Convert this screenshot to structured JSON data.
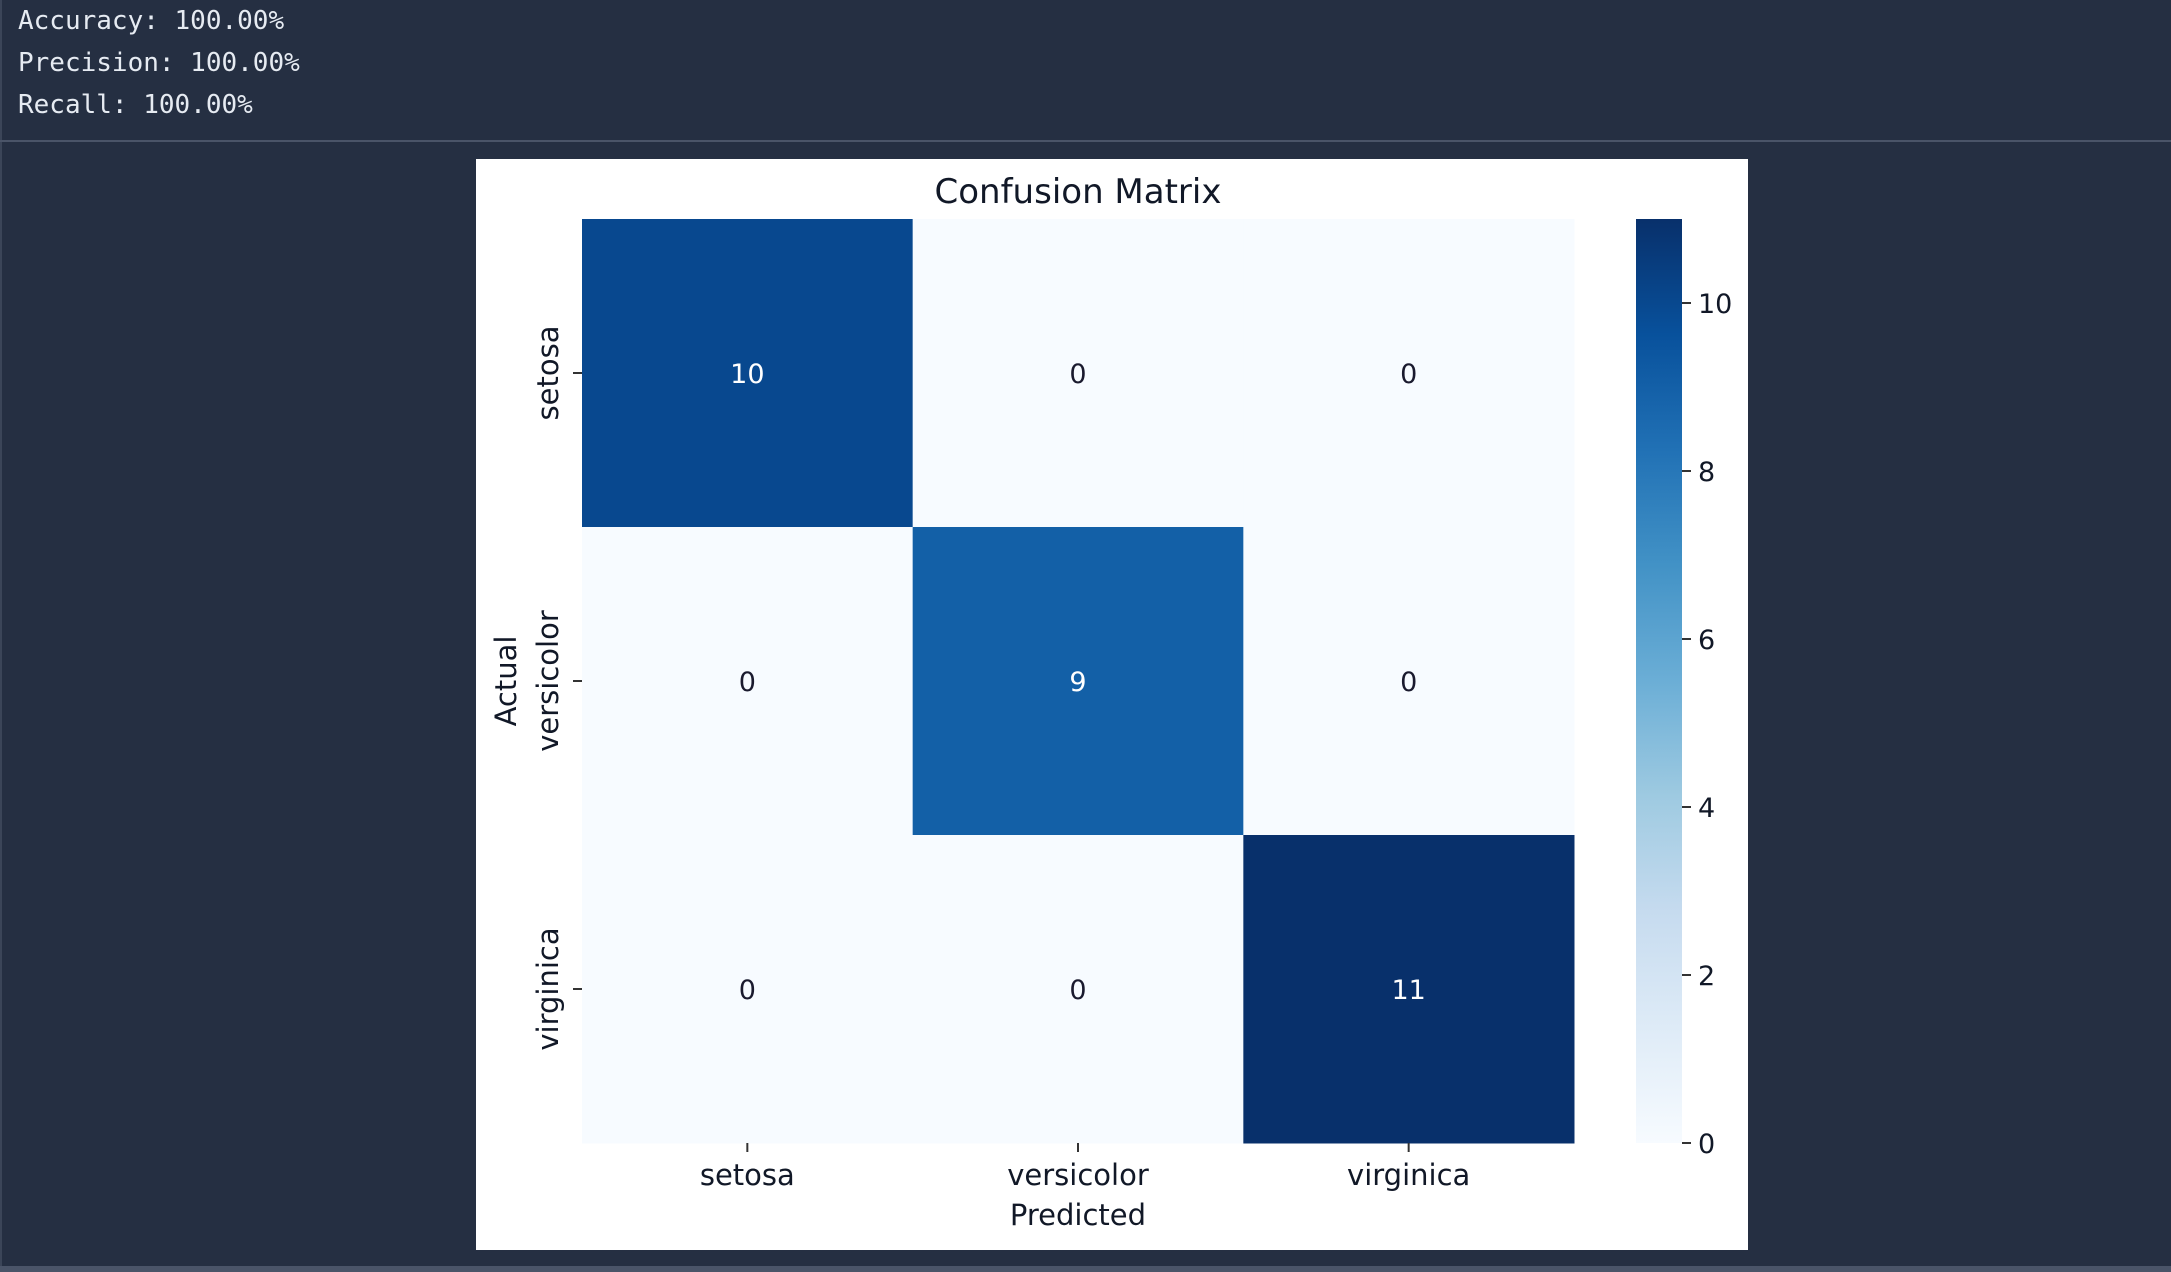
{
  "output": {
    "lines": [
      "Accuracy: 100.00%",
      "Precision: 100.00%",
      "Recall: 100.00%"
    ]
  },
  "chart_data": {
    "type": "heatmap",
    "title": "Confusion Matrix",
    "xlabel": "Predicted",
    "ylabel": "Actual",
    "x_categories": [
      "setosa",
      "versicolor",
      "virginica"
    ],
    "y_categories": [
      "setosa",
      "versicolor",
      "virginica"
    ],
    "values": [
      [
        10,
        0,
        0
      ],
      [
        0,
        9,
        0
      ],
      [
        0,
        0,
        11
      ]
    ],
    "annotations": true,
    "colormap": "Blues",
    "colorbar": {
      "ticks": [
        0,
        2,
        4,
        6,
        8,
        10
      ],
      "range": [
        0,
        11
      ]
    }
  }
}
